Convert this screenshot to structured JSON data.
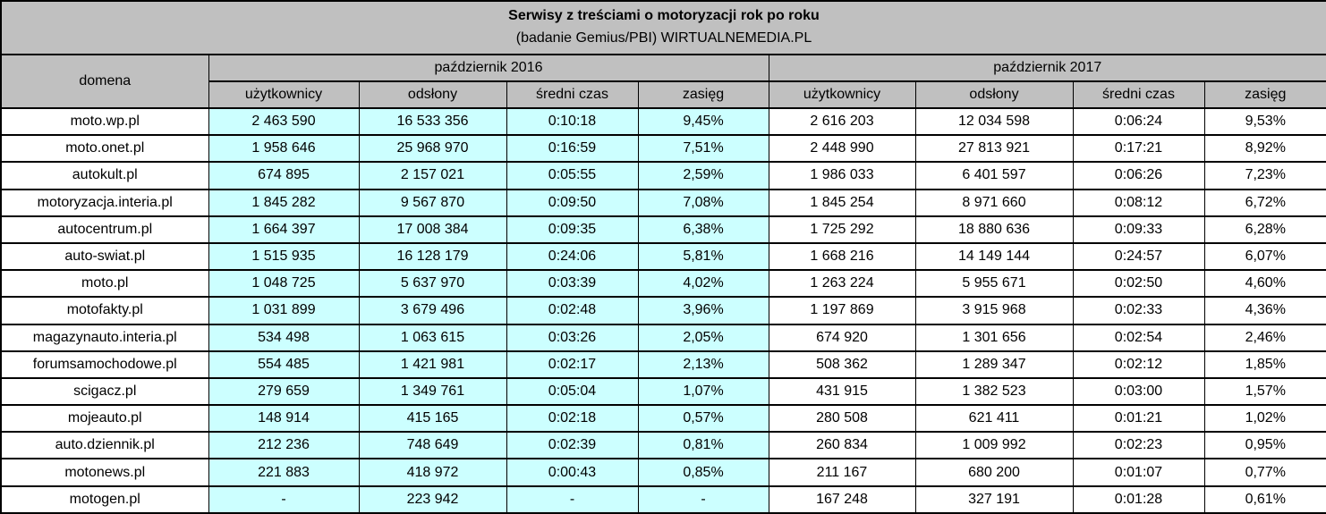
{
  "colors": {
    "header_bg": "#c0c0c0",
    "y2016_bg": "#ccffff",
    "y2017_bg": "#ffffff",
    "grid": "#000000"
  },
  "chart_data": {
    "type": "table",
    "title": "Serwisy z treściami o motoryzacji rok po roku",
    "subtitle": "(badanie Gemius/PBI) WIRTUALNEMEDIA.PL",
    "header": {
      "domain_label": "domena",
      "groups": [
        "październik 2016",
        "październik 2017"
      ],
      "metric_columns": [
        "użytkownicy",
        "odsłony",
        "średni czas",
        "zasięg"
      ]
    },
    "rows": [
      [
        "moto.wp.pl",
        "2 463 590",
        "16 533 356",
        "0:10:18",
        "9,45%",
        "2 616 203",
        "12 034 598",
        "0:06:24",
        "9,53%"
      ],
      [
        "moto.onet.pl",
        "1 958 646",
        "25 968 970",
        "0:16:59",
        "7,51%",
        "2 448 990",
        "27 813 921",
        "0:17:21",
        "8,92%"
      ],
      [
        "autokult.pl",
        "674 895",
        "2 157 021",
        "0:05:55",
        "2,59%",
        "1 986 033",
        "6 401 597",
        "0:06:26",
        "7,23%"
      ],
      [
        "motoryzacja.interia.pl",
        "1 845 282",
        "9 567 870",
        "0:09:50",
        "7,08%",
        "1 845 254",
        "8 971 660",
        "0:08:12",
        "6,72%"
      ],
      [
        "autocentrum.pl",
        "1 664 397",
        "17 008 384",
        "0:09:35",
        "6,38%",
        "1 725 292",
        "18 880 636",
        "0:09:33",
        "6,28%"
      ],
      [
        "auto-swiat.pl",
        "1 515 935",
        "16 128 179",
        "0:24:06",
        "5,81%",
        "1 668 216",
        "14 149 144",
        "0:24:57",
        "6,07%"
      ],
      [
        "moto.pl",
        "1 048 725",
        "5 637 970",
        "0:03:39",
        "4,02%",
        "1 263 224",
        "5 955 671",
        "0:02:50",
        "4,60%"
      ],
      [
        "motofakty.pl",
        "1 031 899",
        "3 679 496",
        "0:02:48",
        "3,96%",
        "1 197 869",
        "3 915 968",
        "0:02:33",
        "4,36%"
      ],
      [
        "magazynauto.interia.pl",
        "534 498",
        "1 063 615",
        "0:03:26",
        "2,05%",
        "674 920",
        "1 301 656",
        "0:02:54",
        "2,46%"
      ],
      [
        "forumsamochodowe.pl",
        "554 485",
        "1 421 981",
        "0:02:17",
        "2,13%",
        "508 362",
        "1 289 347",
        "0:02:12",
        "1,85%"
      ],
      [
        "scigacz.pl",
        "279 659",
        "1 349 761",
        "0:05:04",
        "1,07%",
        "431 915",
        "1 382 523",
        "0:03:00",
        "1,57%"
      ],
      [
        "mojeauto.pl",
        "148 914",
        "415 165",
        "0:02:18",
        "0,57%",
        "280 508",
        "621 411",
        "0:01:21",
        "1,02%"
      ],
      [
        "auto.dziennik.pl",
        "212 236",
        "748 649",
        "0:02:39",
        "0,81%",
        "260 834",
        "1 009 992",
        "0:02:23",
        "0,95%"
      ],
      [
        "motonews.pl",
        "221 883",
        "418 972",
        "0:00:43",
        "0,85%",
        "211 167",
        "680 200",
        "0:01:07",
        "0,77%"
      ],
      [
        "motogen.pl",
        "-",
        "223 942",
        "-",
        "-",
        "167 248",
        "327 191",
        "0:01:28",
        "0,61%"
      ]
    ]
  }
}
